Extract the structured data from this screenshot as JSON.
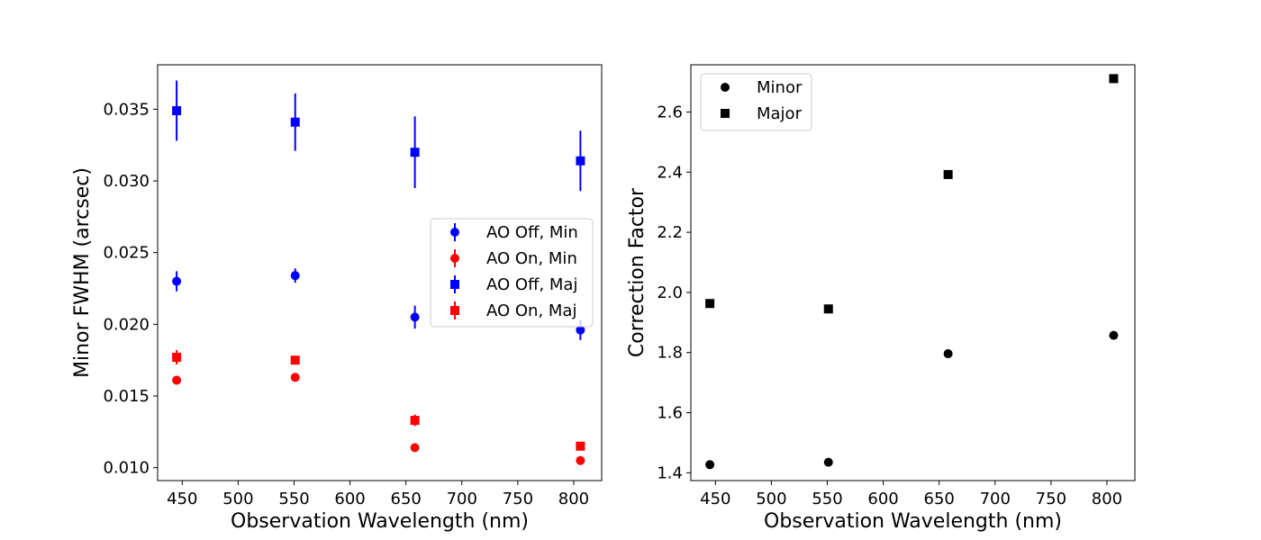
{
  "chart_data": [
    {
      "type": "scatter",
      "xlabel": "Observation Wavelength (nm)",
      "ylabel": "Minor FWHM (arcsec)",
      "xlim": [
        428,
        825
      ],
      "ylim": [
        0.0091,
        0.0381
      ],
      "xticks": [
        450,
        500,
        550,
        600,
        650,
        700,
        750,
        800
      ],
      "yticks": [
        0.01,
        0.015,
        0.02,
        0.025,
        0.03,
        0.035
      ],
      "ytick_labels": [
        "0.010",
        "0.015",
        "0.020",
        "0.025",
        "0.030",
        "0.035"
      ],
      "grid": false,
      "legend_position": "center-right",
      "series": [
        {
          "name": "AO Off, Min",
          "color": "#0000ff",
          "marker": "circle",
          "x": [
            445,
            551,
            658,
            806
          ],
          "y": [
            0.023,
            0.0234,
            0.0205,
            0.0196
          ],
          "yerr": [
            0.0007,
            0.0005,
            0.0008,
            0.0007
          ]
        },
        {
          "name": "AO On, Min",
          "color": "#ff0000",
          "marker": "circle",
          "x": [
            445,
            551,
            658,
            806
          ],
          "y": [
            0.0161,
            0.0163,
            0.0114,
            0.0105
          ],
          "yerr": [
            0.0003,
            0.0002,
            0.0002,
            0.0003
          ]
        },
        {
          "name": "AO Off, Maj",
          "color": "#0000ff",
          "marker": "square",
          "x": [
            445,
            551,
            658,
            806
          ],
          "y": [
            0.0349,
            0.0341,
            0.032,
            0.0314
          ],
          "yerr": [
            0.0021,
            0.002,
            0.0025,
            0.0021
          ]
        },
        {
          "name": "AO On, Maj",
          "color": "#ff0000",
          "marker": "square",
          "x": [
            445,
            551,
            658,
            806
          ],
          "y": [
            0.0177,
            0.0175,
            0.0133,
            0.0115
          ],
          "yerr": [
            0.0005,
            0.0002,
            0.0004,
            0.0003
          ]
        }
      ]
    },
    {
      "type": "scatter",
      "xlabel": "Observation Wavelength (nm)",
      "ylabel": "Correction Factor",
      "xlim": [
        428,
        825
      ],
      "ylim": [
        1.374,
        2.757
      ],
      "xticks": [
        450,
        500,
        550,
        600,
        650,
        700,
        750,
        800
      ],
      "yticks": [
        1.4,
        1.6,
        1.8,
        2.0,
        2.2,
        2.4,
        2.6
      ],
      "ytick_labels": [
        "1.4",
        "1.6",
        "1.8",
        "2.0",
        "2.2",
        "2.4",
        "2.6"
      ],
      "grid": false,
      "legend_position": "top-left",
      "series": [
        {
          "name": "Minor",
          "color": "#000000",
          "marker": "circle",
          "x": [
            445,
            551,
            658,
            806
          ],
          "y": [
            1.427,
            1.435,
            1.796,
            1.857
          ]
        },
        {
          "name": "Major",
          "color": "#000000",
          "marker": "square",
          "x": [
            445,
            551,
            658,
            806
          ],
          "y": [
            1.963,
            1.945,
            2.392,
            2.711
          ]
        }
      ]
    }
  ]
}
